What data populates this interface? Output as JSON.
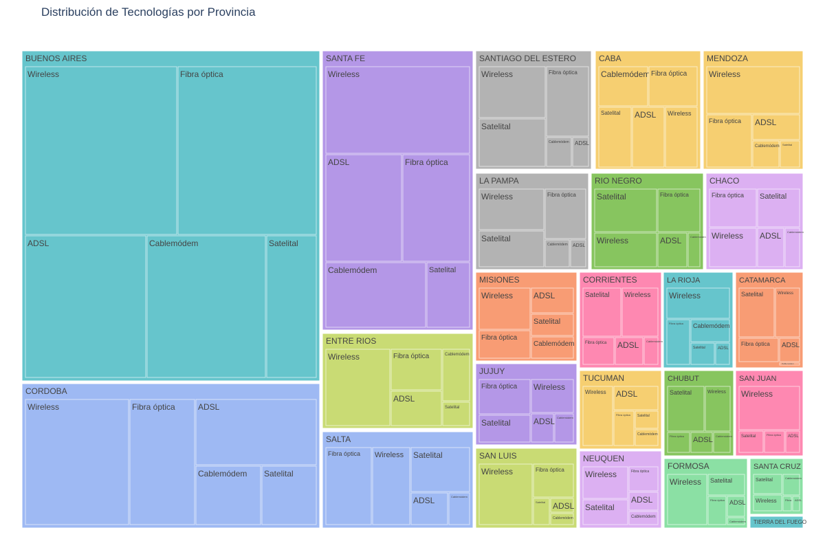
{
  "chart_data": {
    "type": "treemap",
    "title": "Distribución de Tecnologías por Provincia",
    "provinces": [
      {
        "name": "BUENOS AIRES",
        "color": "#66c5cc",
        "children": [
          {
            "name": "Wireless",
            "value": 61
          },
          {
            "name": "Fibra óptica",
            "value": 62
          },
          {
            "name": "ADSL",
            "value": 54
          },
          {
            "name": "Cablemódem",
            "value": 51
          },
          {
            "name": "Satelital",
            "value": 22
          }
        ]
      },
      {
        "name": "CORDOBA",
        "color": "#9eb9f3",
        "children": [
          {
            "name": "Wireless",
            "value": 42
          },
          {
            "name": "Fibra óptica",
            "value": 26
          },
          {
            "name": "ADSL",
            "value": 35
          },
          {
            "name": "Cablemódem",
            "value": 19
          },
          {
            "name": "Satelital",
            "value": 17
          }
        ]
      },
      {
        "name": "SANTA FE",
        "color": "#b497e7",
        "children": [
          {
            "name": "Wireless",
            "value": 31
          },
          {
            "name": "ADSL",
            "value": 22
          },
          {
            "name": "Fibra óptica",
            "value": 19
          },
          {
            "name": "Cablemódem",
            "value": 15
          },
          {
            "name": "Satelital",
            "value": 7
          }
        ]
      },
      {
        "name": "ENTRE RIOS",
        "color": "#c9db74",
        "children": [
          {
            "name": "Wireless",
            "value": 15
          },
          {
            "name": "Fibra óptica",
            "value": 6
          },
          {
            "name": "ADSL",
            "value": 5
          },
          {
            "name": "Cablemódem",
            "value": 4
          },
          {
            "name": "Satelital",
            "value": 2
          }
        ]
      },
      {
        "name": "SALTA",
        "color": "#9eb9f3",
        "children": [
          {
            "name": "Fibra óptica",
            "value": 9
          },
          {
            "name": "Wireless",
            "value": 7
          },
          {
            "name": "Satelital",
            "value": 6
          },
          {
            "name": "ADSL",
            "value": 4
          },
          {
            "name": "Cablemódem",
            "value": 2
          }
        ]
      },
      {
        "name": "SANTIAGO DEL ESTERO",
        "color": "#b3b3b3",
        "children": [
          {
            "name": "Wireless",
            "value": 8
          },
          {
            "name": "Satelital",
            "value": 8
          },
          {
            "name": "Fibra óptica",
            "value": 6
          },
          {
            "name": "Cablemódem",
            "value": 2
          },
          {
            "name": "ADSL",
            "value": 1.5
          }
        ]
      },
      {
        "name": "LA PAMPA",
        "color": "#b3b3b3",
        "children": [
          {
            "name": "Wireless",
            "value": 5
          },
          {
            "name": "Satelital",
            "value": 5
          },
          {
            "name": "Fibra óptica",
            "value": 5
          },
          {
            "name": "Cablemódem",
            "value": 2
          },
          {
            "name": "ADSL",
            "value": 1
          }
        ]
      },
      {
        "name": "MISIONES",
        "color": "#f89c74",
        "children": [
          {
            "name": "Wireless",
            "value": 6
          },
          {
            "name": "Fibra óptica",
            "value": 4
          },
          {
            "name": "ADSL",
            "value": 3
          },
          {
            "name": "Satelital",
            "value": 3
          },
          {
            "name": "Cablemódem",
            "value": 2.5
          }
        ]
      },
      {
        "name": "JUJUY",
        "color": "#b497e7",
        "children": [
          {
            "name": "Fibra óptica",
            "value": 4
          },
          {
            "name": "Satelital",
            "value": 3.5
          },
          {
            "name": "Wireless",
            "value": 3
          },
          {
            "name": "ADSL",
            "value": 2
          },
          {
            "name": "Cablemódem",
            "value": 1.5
          }
        ]
      },
      {
        "name": "SAN LUIS",
        "color": "#c9db74",
        "children": [
          {
            "name": "Wireless",
            "value": 8
          },
          {
            "name": "Fibra óptica",
            "value": 3
          },
          {
            "name": "Satelital",
            "value": 1
          },
          {
            "name": "ADSL",
            "value": 1
          },
          {
            "name": "Cablemódem",
            "value": 0.7
          }
        ]
      },
      {
        "name": "CABA",
        "color": "#f6cf71",
        "children": [
          {
            "name": "Cablemódem",
            "value": 4
          },
          {
            "name": "Fibra óptica",
            "value": 4
          },
          {
            "name": "Satelital",
            "value": 3.5
          },
          {
            "name": "ADSL",
            "value": 3.5
          },
          {
            "name": "Wireless",
            "value": 3.5
          }
        ]
      },
      {
        "name": "MENDOZA",
        "color": "#f6cf71",
        "children": [
          {
            "name": "Wireless",
            "value": 8
          },
          {
            "name": "Fibra óptica",
            "value": 5
          },
          {
            "name": "ADSL",
            "value": 2.5
          },
          {
            "name": "Cablemódem",
            "value": 2.3
          },
          {
            "name": "Satelital",
            "value": 1.8
          }
        ]
      },
      {
        "name": "RIO NEGRO",
        "color": "#87c55f",
        "children": [
          {
            "name": "Satelital",
            "value": 5
          },
          {
            "name": "Fibra óptica",
            "value": 4
          },
          {
            "name": "Wireless",
            "value": 4
          },
          {
            "name": "ADSL",
            "value": 2.5
          },
          {
            "name": "Cablemódem",
            "value": 1
          }
        ]
      },
      {
        "name": "CHACO",
        "color": "#dcb0f2",
        "children": [
          {
            "name": "Fibra óptica",
            "value": 3.5
          },
          {
            "name": "Satelital",
            "value": 3.5
          },
          {
            "name": "Wireless",
            "value": 4.5
          },
          {
            "name": "ADSL",
            "value": 2.5
          },
          {
            "name": "Cablemódem",
            "value": 1.2
          }
        ]
      },
      {
        "name": "CORRIENTES",
        "color": "#fe88b1",
        "children": [
          {
            "name": "Satelital",
            "value": 4
          },
          {
            "name": "Wireless",
            "value": 4
          },
          {
            "name": "Fibra óptica",
            "value": 2.5
          },
          {
            "name": "ADSL",
            "value": 2.5
          },
          {
            "name": "Cablemódem",
            "value": 1.2
          }
        ]
      },
      {
        "name": "LA RIOJA",
        "color": "#66c5cc",
        "children": [
          {
            "name": "Wireless",
            "value": 5
          },
          {
            "name": "Fibra óptica",
            "value": 3.5
          },
          {
            "name": "Cablemódem",
            "value": 3
          },
          {
            "name": "Satelital",
            "value": 2.5
          },
          {
            "name": "ADSL",
            "value": 1.5
          }
        ]
      },
      {
        "name": "CATAMARCA",
        "color": "#f89c74",
        "children": [
          {
            "name": "Satelital",
            "value": 3.5
          },
          {
            "name": "Wireless",
            "value": 2.5
          },
          {
            "name": "Fibra óptica",
            "value": 3.5
          },
          {
            "name": "ADSL",
            "value": 2
          },
          {
            "name": "Cablemódem",
            "value": 0.4
          }
        ]
      },
      {
        "name": "TUCUMAN",
        "color": "#f6cf71",
        "children": [
          {
            "name": "Wireless",
            "value": 4
          },
          {
            "name": "ADSL",
            "value": 3.5
          },
          {
            "name": "Fibra óptica",
            "value": 2.5
          },
          {
            "name": "Satelital",
            "value": 2.5
          },
          {
            "name": "Cablemódem",
            "value": 1.5
          }
        ]
      },
      {
        "name": "CHUBUT",
        "color": "#87c55f",
        "children": [
          {
            "name": "Satelital",
            "value": 5
          },
          {
            "name": "Wireless",
            "value": 3
          },
          {
            "name": "Fibra óptica",
            "value": 1.5
          },
          {
            "name": "ADSL",
            "value": 1.5
          },
          {
            "name": "Cablemódem",
            "value": 1.2
          }
        ]
      },
      {
        "name": "SAN JUAN",
        "color": "#fe88b1",
        "children": [
          {
            "name": "Wireless",
            "value": 6.5
          },
          {
            "name": "Satelital",
            "value": 1.6
          },
          {
            "name": "Fibra óptica",
            "value": 1.6
          },
          {
            "name": "ADSL",
            "value": 1.2
          }
        ]
      },
      {
        "name": "NEUQUEN",
        "color": "#dcb0f2",
        "children": [
          {
            "name": "Wireless",
            "value": 3.5
          },
          {
            "name": "Satelital",
            "value": 3
          },
          {
            "name": "Fibra óptica",
            "value": 2
          },
          {
            "name": "ADSL",
            "value": 2
          },
          {
            "name": "Cablemódem",
            "value": 1
          }
        ]
      },
      {
        "name": "FORMOSA",
        "color": "#8be0a4",
        "children": [
          {
            "name": "Wireless",
            "value": 4.5
          },
          {
            "name": "Satelital",
            "value": 2.5
          },
          {
            "name": "Fibra óptica",
            "value": 2
          },
          {
            "name": "ADSL",
            "value": 1.3
          },
          {
            "name": "Cablemódem",
            "value": 0.4
          }
        ]
      },
      {
        "name": "SANTA CRUZ",
        "color": "#8be0a4",
        "children": [
          {
            "name": "Satelital",
            "value": 1.2
          },
          {
            "name": "Wireless",
            "value": 1
          },
          {
            "name": "Cablemódem",
            "value": 0.5
          },
          {
            "name": "Fibra óptica",
            "value": 0.2
          },
          {
            "name": "ADSL",
            "value": 0.2
          }
        ]
      },
      {
        "name": "TIERRA DEL FUEGO",
        "color": "#66c5cc",
        "children": []
      }
    ]
  }
}
